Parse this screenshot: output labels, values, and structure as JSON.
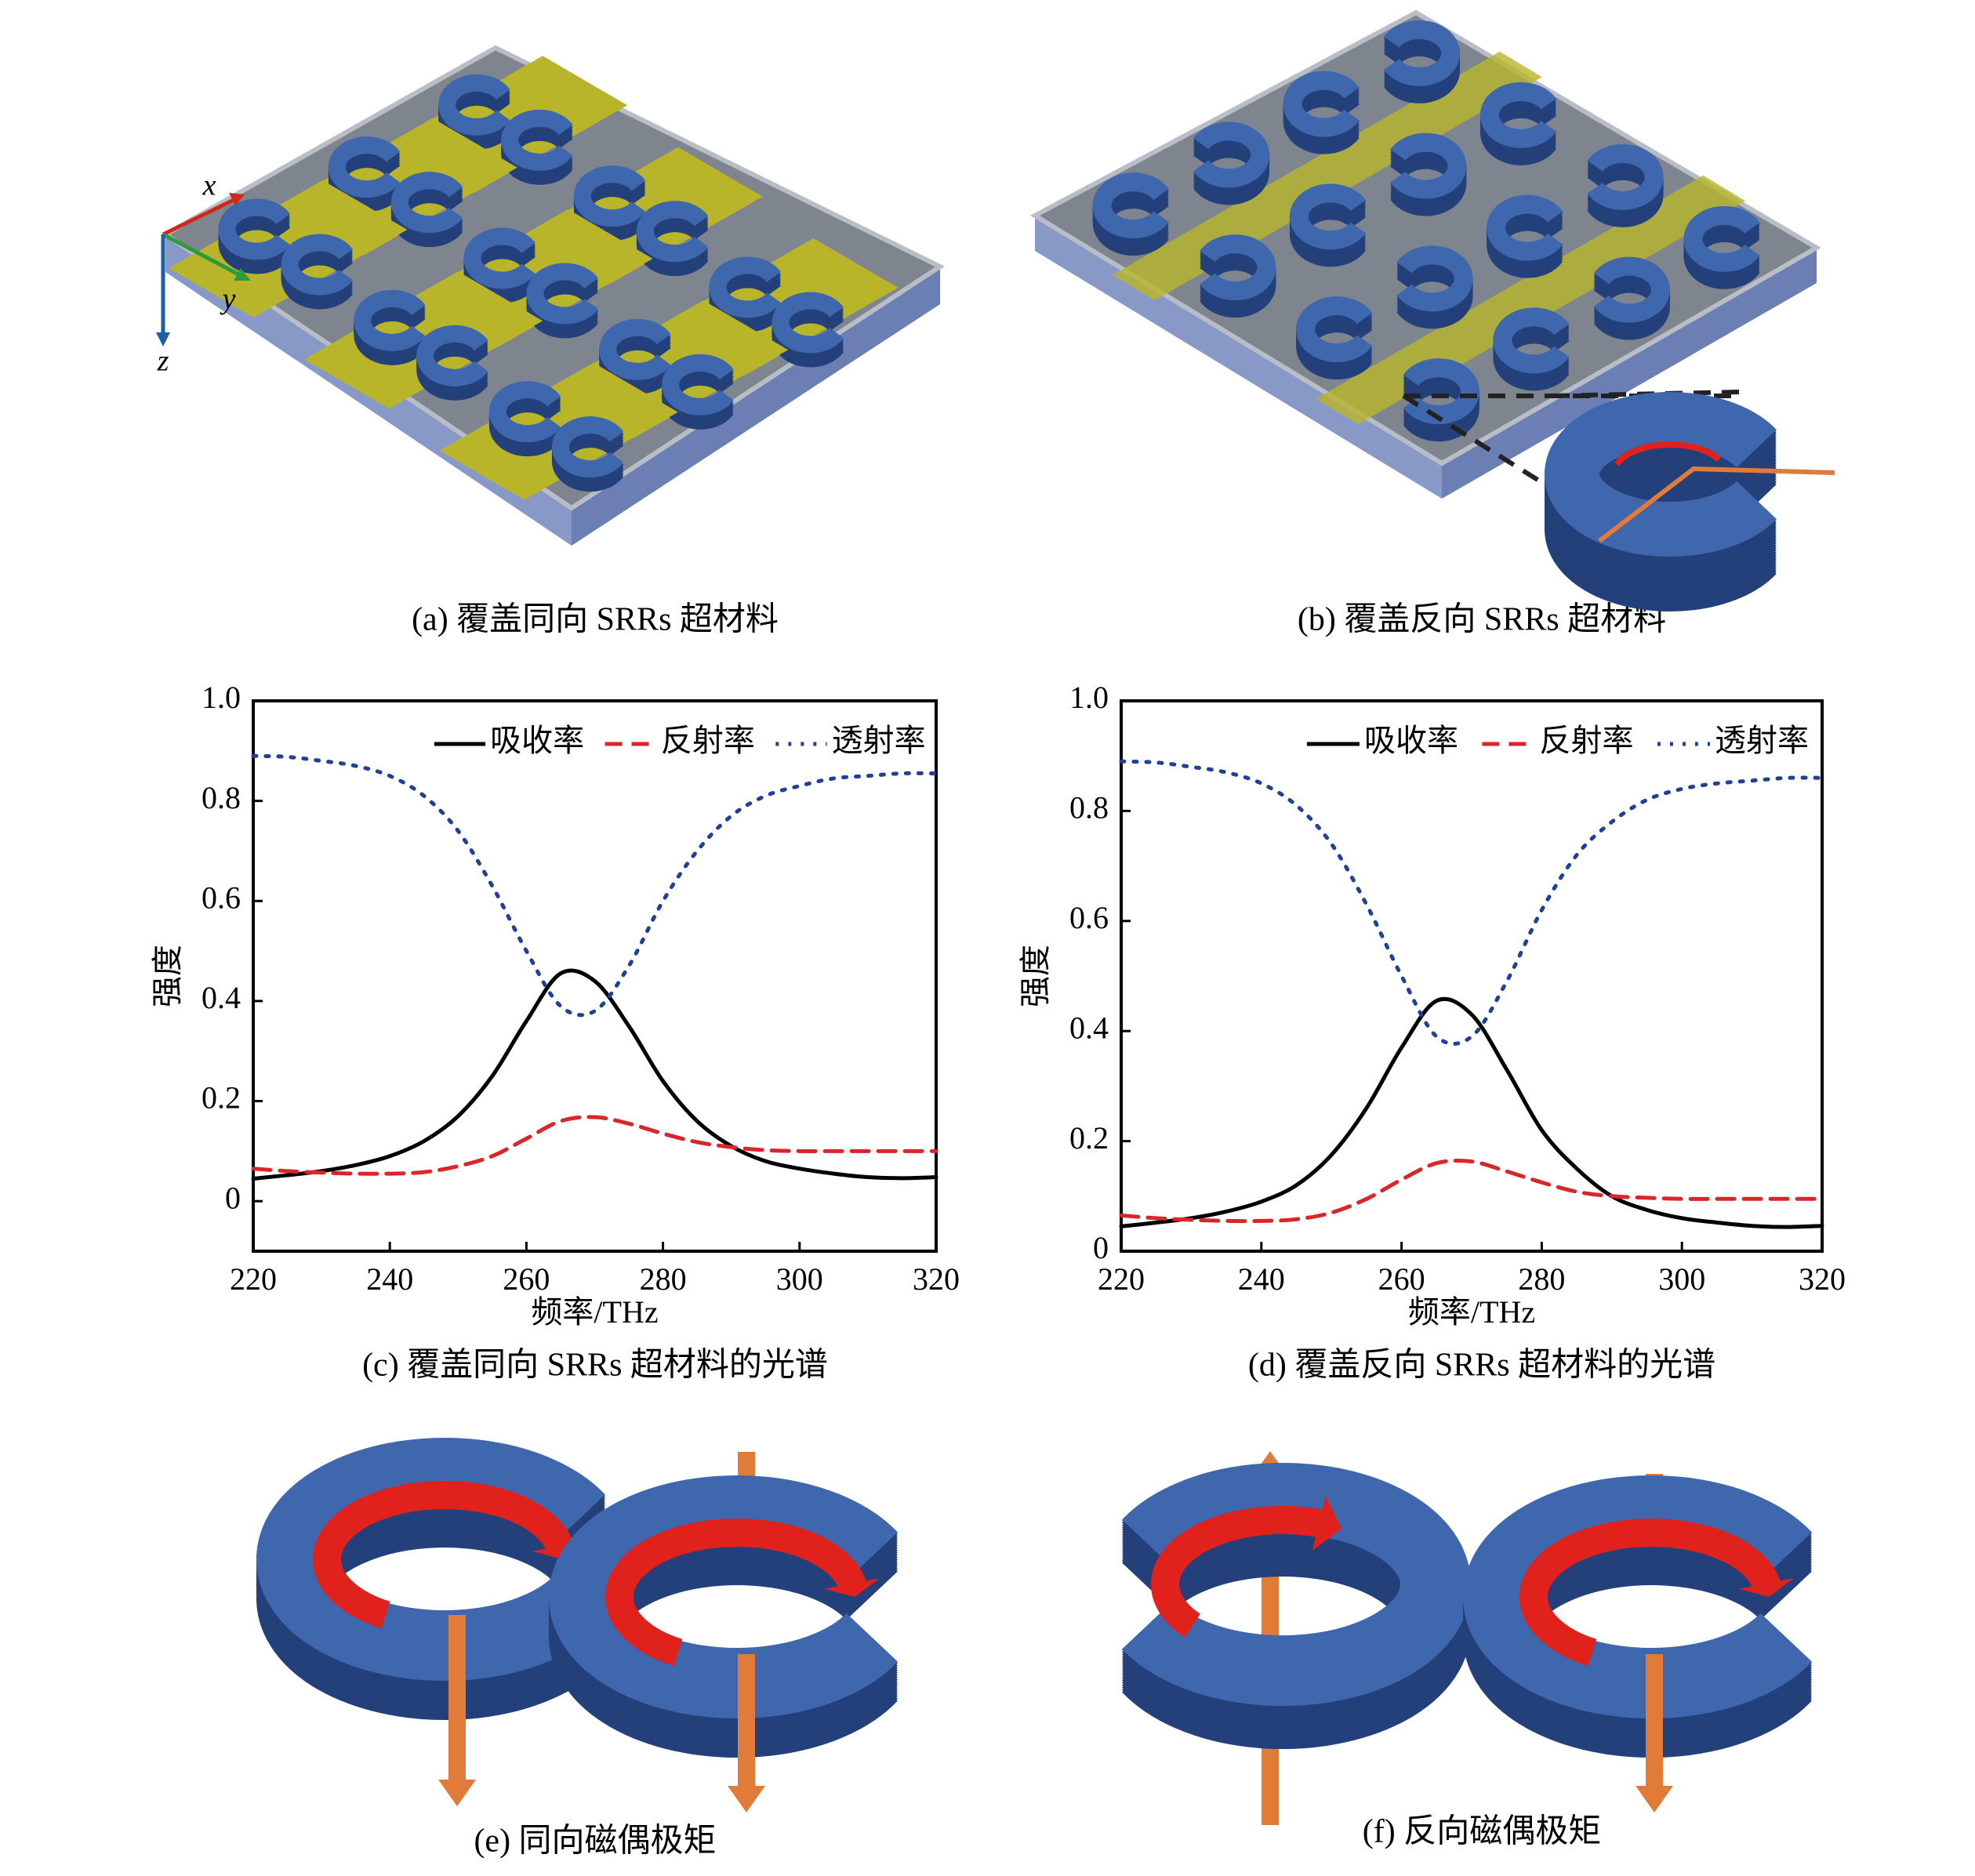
{
  "panels": {
    "a": {
      "caption": "(a) 覆盖同向 SRRs 超材料",
      "axes": [
        "x",
        "y",
        "z"
      ]
    },
    "b": {
      "caption": "(b) 覆盖反向 SRRs 超材料"
    },
    "e": {
      "caption": "(e) 同向磁偶极矩"
    },
    "f": {
      "caption": "(f) 反向磁偶极矩"
    }
  },
  "chart_data": [
    {
      "type": "line",
      "caption": "(c) 覆盖同向 SRRs 超材料的光谱",
      "xlabel": "频率/THz",
      "ylabel": "强度",
      "x": [
        220,
        225,
        230,
        235,
        240,
        245,
        250,
        255,
        260,
        265,
        270,
        275,
        280,
        285,
        290,
        295,
        300,
        305,
        310,
        315,
        320
      ],
      "series": [
        {
          "name": "吸收率",
          "color": "#000000",
          "style": "solid",
          "values": [
            0.045,
            0.052,
            0.06,
            0.072,
            0.09,
            0.12,
            0.17,
            0.25,
            0.36,
            0.455,
            0.44,
            0.35,
            0.24,
            0.16,
            0.11,
            0.08,
            0.065,
            0.055,
            0.048,
            0.046,
            0.048
          ]
        },
        {
          "name": "反射率",
          "color": "#d9262b",
          "style": "dashed",
          "values": [
            0.065,
            0.06,
            0.057,
            0.055,
            0.055,
            0.058,
            0.07,
            0.09,
            0.125,
            0.16,
            0.168,
            0.155,
            0.135,
            0.118,
            0.108,
            0.102,
            0.1,
            0.1,
            0.1,
            0.1,
            0.1
          ]
        },
        {
          "name": "透射率",
          "color": "#1f3f99",
          "style": "dotted",
          "values": [
            0.89,
            0.888,
            0.88,
            0.87,
            0.85,
            0.81,
            0.74,
            0.63,
            0.5,
            0.39,
            0.38,
            0.47,
            0.6,
            0.7,
            0.77,
            0.81,
            0.83,
            0.845,
            0.85,
            0.855,
            0.855
          ]
        }
      ],
      "xlim": [
        220,
        320
      ],
      "xticks": [
        220,
        240,
        260,
        280,
        300,
        320
      ],
      "ylim": [
        -0.1,
        1
      ],
      "yticks": [
        {
          "value": 1,
          "label": "1.0"
        },
        0.8,
        0.6,
        0.4,
        0.2,
        0
      ],
      "legend": "upper right"
    },
    {
      "type": "line",
      "caption": "(d) 覆盖反向 SRRs 超材料的光谱",
      "xlabel": "频率/THz",
      "ylabel": "强度",
      "x": [
        220,
        225,
        230,
        235,
        240,
        245,
        250,
        255,
        260,
        265,
        270,
        275,
        280,
        285,
        290,
        295,
        300,
        305,
        310,
        315,
        320
      ],
      "series": [
        {
          "name": "吸收率",
          "color": "#000000",
          "style": "solid",
          "values": [
            0.045,
            0.052,
            0.06,
            0.072,
            0.09,
            0.12,
            0.175,
            0.26,
            0.37,
            0.455,
            0.43,
            0.33,
            0.22,
            0.15,
            0.1,
            0.075,
            0.06,
            0.052,
            0.046,
            0.044,
            0.046
          ]
        },
        {
          "name": "反射率",
          "color": "#d9262b",
          "style": "dashed",
          "values": [
            0.065,
            0.06,
            0.057,
            0.055,
            0.055,
            0.058,
            0.07,
            0.095,
            0.13,
            0.16,
            0.163,
            0.145,
            0.125,
            0.108,
            0.1,
            0.097,
            0.095,
            0.095,
            0.095,
            0.095,
            0.095
          ]
        },
        {
          "name": "透射率",
          "color": "#1f3f99",
          "style": "dotted",
          "values": [
            0.89,
            0.888,
            0.88,
            0.87,
            0.85,
            0.81,
            0.74,
            0.63,
            0.5,
            0.39,
            0.39,
            0.49,
            0.62,
            0.72,
            0.78,
            0.82,
            0.84,
            0.85,
            0.855,
            0.86,
            0.86
          ]
        }
      ],
      "xlim": [
        220,
        320
      ],
      "xticks": [
        220,
        240,
        260,
        280,
        300,
        320
      ],
      "ylim": [
        0,
        1
      ],
      "yticks": [
        {
          "value": 1,
          "label": "1.0"
        },
        0.8,
        0.6,
        0.4,
        0.2,
        0
      ],
      "legend": "upper right"
    }
  ]
}
